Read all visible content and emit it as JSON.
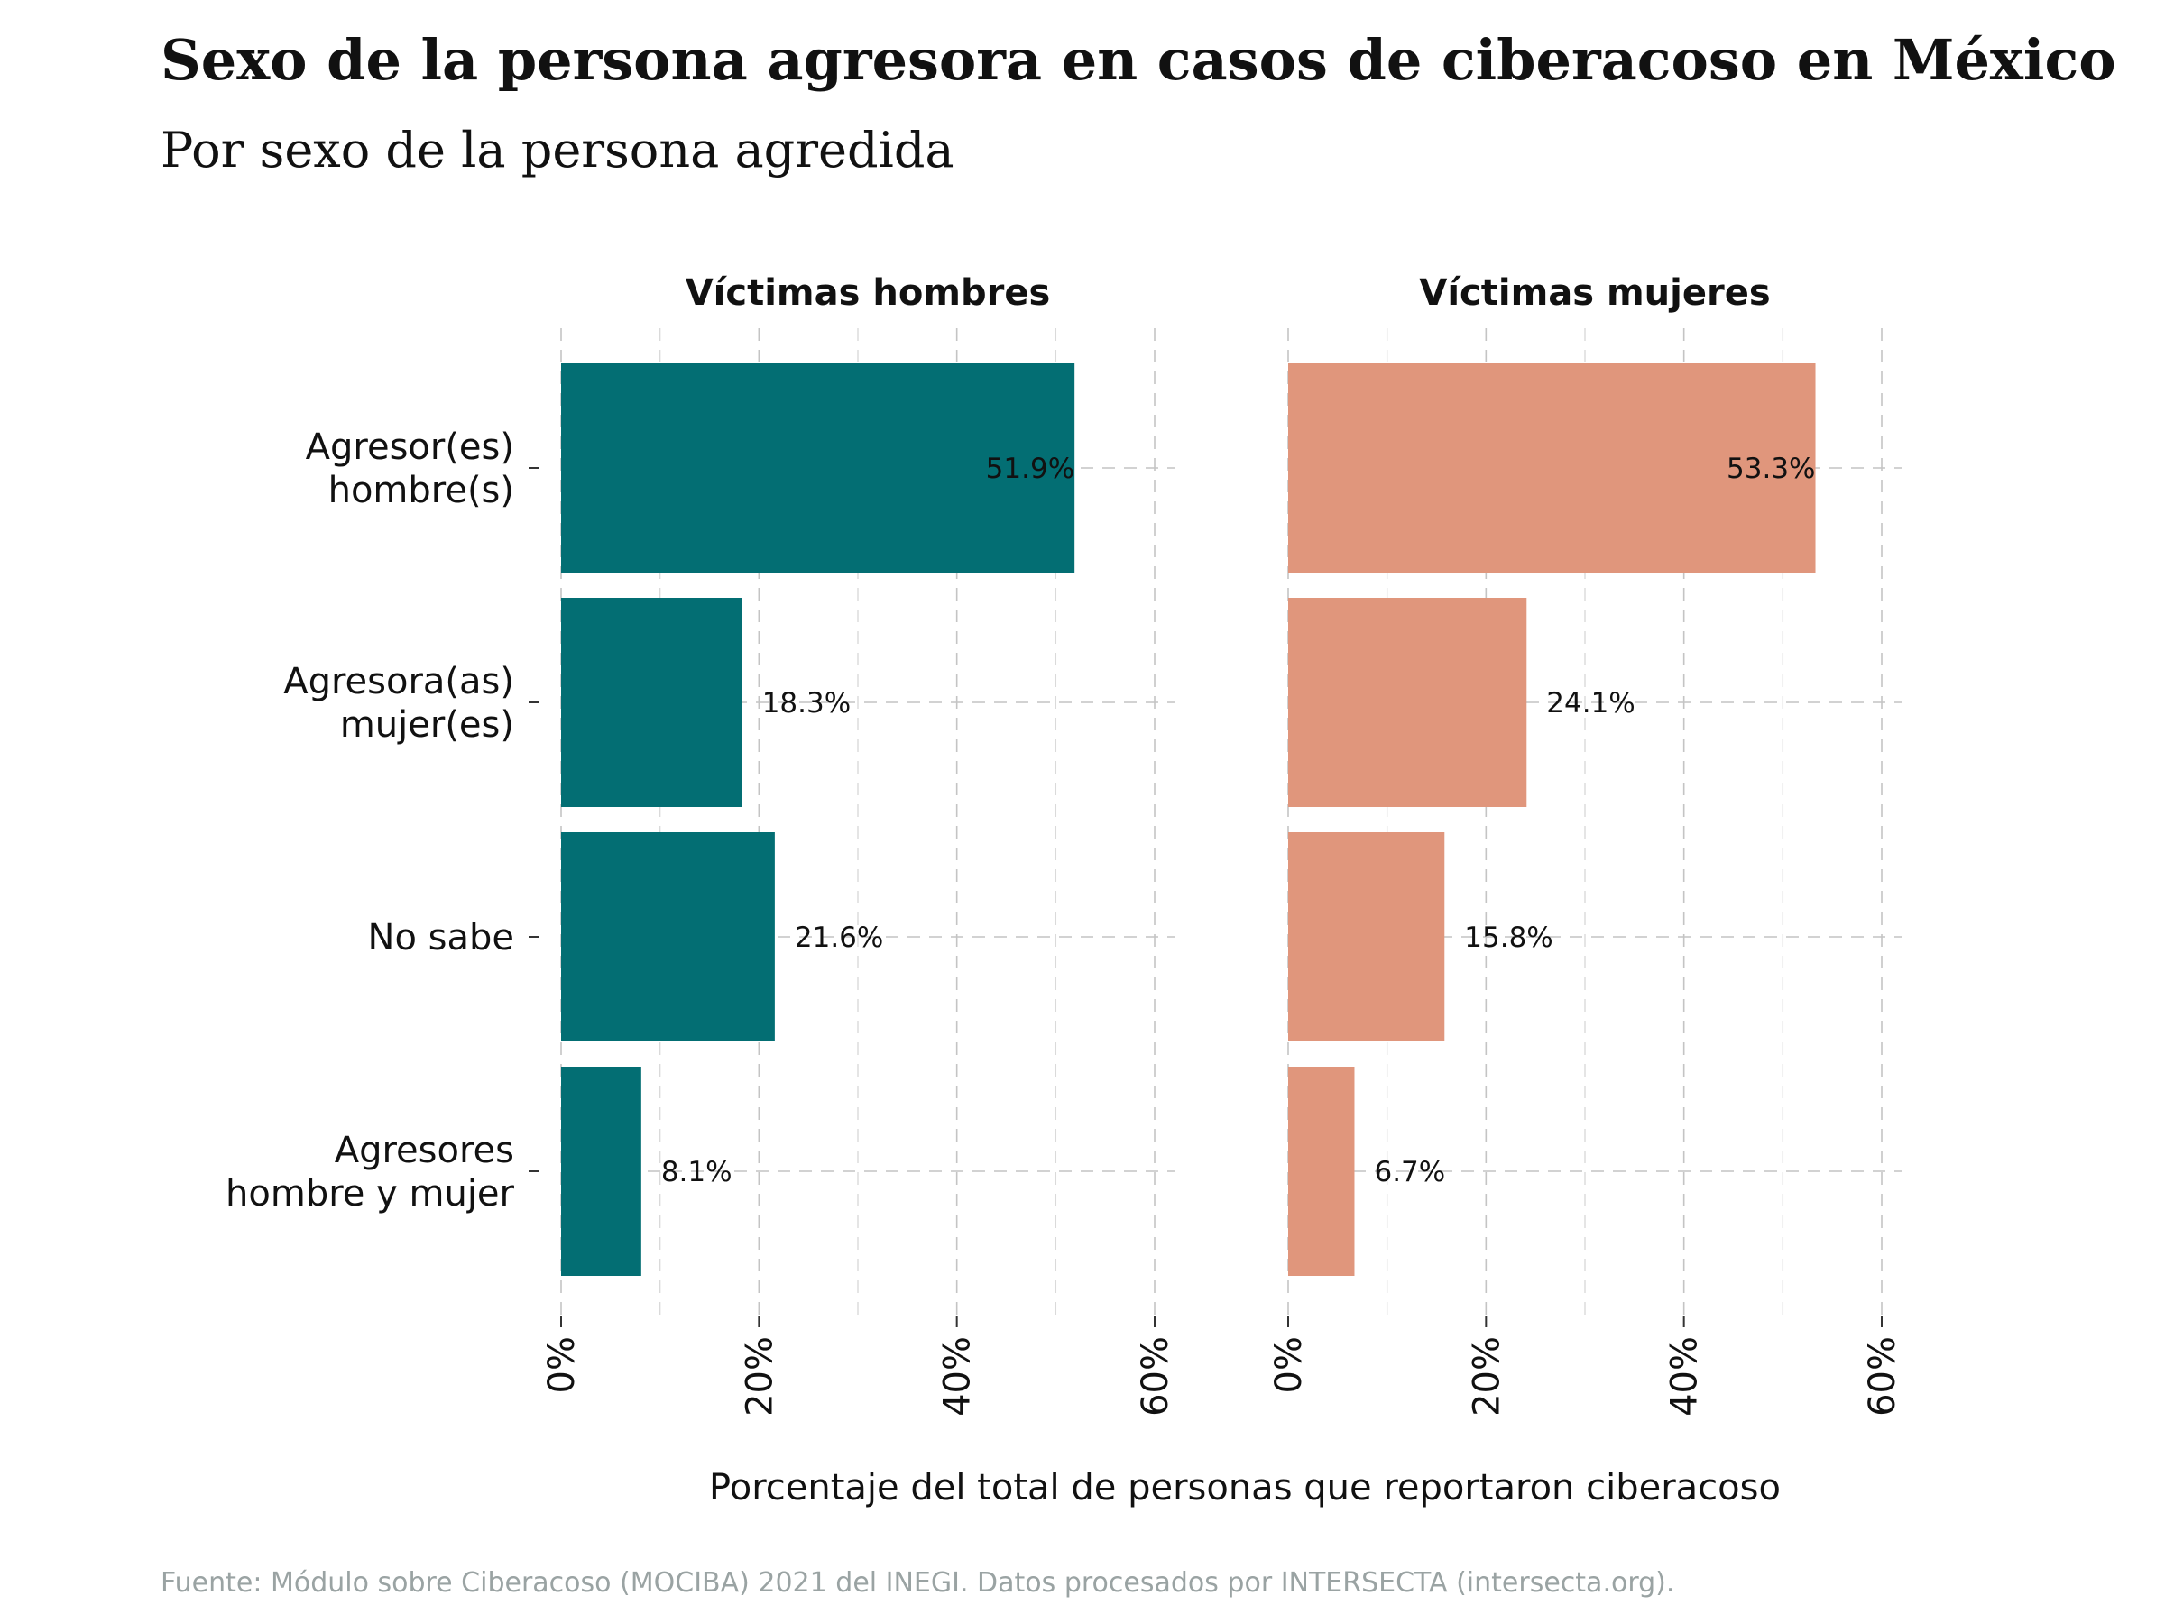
{
  "chart_data": {
    "type": "bar",
    "orientation": "horizontal",
    "title": "Sexo de la persona agresora en casos de ciberacoso en México",
    "subtitle": "Por sexo de la persona agredida",
    "xlabel": "Porcentaje del total de personas que reportaron ciberacoso",
    "ylabel": "",
    "xlim": [
      0,
      60
    ],
    "x_ticks": [
      "0%",
      "20%",
      "40%",
      "60%"
    ],
    "grid": true,
    "categories": [
      "Agresor(es)\nhombre(s)",
      "Agresora(as)\nmujer(es)",
      "No sabe",
      "Agresores\nhombre y mujer"
    ],
    "panels": [
      {
        "name": "Víctimas hombres",
        "color": "#036e73",
        "values": [
          51.9,
          18.3,
          21.6,
          8.1
        ],
        "labels": [
          "51.9%",
          "18.3%",
          "21.6%",
          "8.1%"
        ]
      },
      {
        "name": "Víctimas mujeres",
        "color": "#e0967c",
        "values": [
          53.3,
          24.1,
          15.8,
          6.7
        ],
        "labels": [
          "53.3%",
          "24.1%",
          "15.8%",
          "6.7%"
        ]
      }
    ],
    "caption": "Fuente: Módulo sobre Ciberacoso (MOCIBA) 2021 del INEGI. Datos procesados por INTERSECTA (intersecta.org)."
  }
}
